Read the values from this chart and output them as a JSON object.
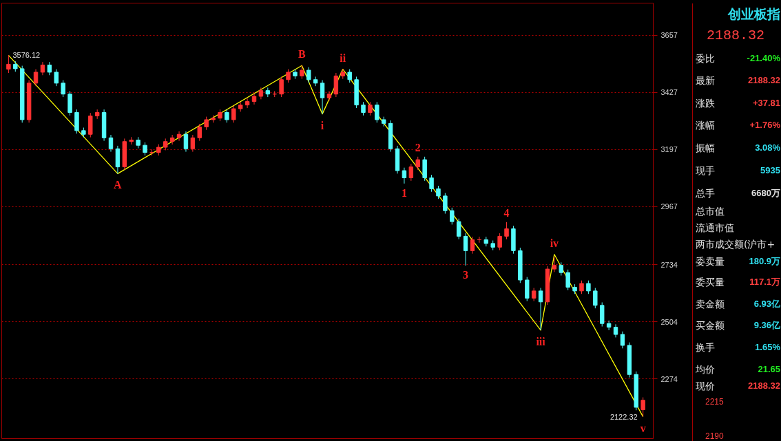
{
  "chart_data": {
    "type": "candlestick",
    "title": "创业板指",
    "subtitle": "2188.32",
    "categories": [
      null,
      null,
      null,
      null,
      null,
      null,
      null,
      null,
      null,
      null,
      null,
      null,
      null,
      null,
      null,
      null,
      null,
      null,
      null,
      null,
      null,
      null,
      null,
      null,
      null,
      null,
      null,
      null,
      null,
      null,
      null,
      null,
      null,
      null,
      null,
      null,
      null,
      null,
      null,
      null,
      null,
      null,
      null,
      null,
      null,
      null,
      null,
      null,
      null,
      null,
      null,
      null,
      null,
      null,
      null,
      null,
      null,
      null,
      null,
      null,
      null,
      null,
      null,
      null,
      null,
      null,
      null,
      null,
      null,
      null,
      null,
      null,
      null,
      null,
      null,
      null,
      null,
      null,
      null,
      null,
      null,
      null,
      null,
      null,
      null,
      null,
      null,
      null,
      null,
      null,
      null,
      null,
      null,
      null
    ],
    "ohlc": [
      [
        3520,
        3576.12,
        3505,
        3540
      ],
      [
        3540,
        3552,
        3510,
        3522
      ],
      [
        3522,
        3534,
        3305,
        3317
      ],
      [
        3317,
        3476,
        3305,
        3464
      ],
      [
        3464,
        3520,
        3452,
        3508
      ],
      [
        3508,
        3549,
        3496,
        3537
      ],
      [
        3537,
        3549,
        3496,
        3508
      ],
      [
        3508,
        3520,
        3452,
        3464
      ],
      [
        3464,
        3476,
        3408,
        3420
      ],
      [
        3420,
        3432,
        3334,
        3346
      ],
      [
        3346,
        3358,
        3261,
        3273
      ],
      [
        3273,
        3285,
        3246,
        3258
      ],
      [
        3258,
        3344,
        3246,
        3332
      ],
      [
        3332,
        3358,
        3320,
        3346
      ],
      [
        3346,
        3358,
        3232,
        3244
      ],
      [
        3244,
        3256,
        3188,
        3200
      ],
      [
        3200,
        3212,
        3100,
        3127
      ],
      [
        3127,
        3241,
        3115,
        3229
      ],
      [
        3229,
        3247,
        3217,
        3235
      ],
      [
        3235,
        3247,
        3202,
        3214
      ],
      [
        3214,
        3226,
        3173,
        3185
      ],
      [
        3185,
        3197,
        3173,
        3185
      ],
      [
        3185,
        3218,
        3173,
        3206
      ],
      [
        3206,
        3241,
        3194,
        3229
      ],
      [
        3229,
        3256,
        3217,
        3244
      ],
      [
        3244,
        3270,
        3232,
        3258
      ],
      [
        3258,
        3270,
        3188,
        3200
      ],
      [
        3200,
        3256,
        3188,
        3244
      ],
      [
        3244,
        3300,
        3232,
        3288
      ],
      [
        3288,
        3329,
        3276,
        3317
      ],
      [
        3317,
        3335,
        3305,
        3323
      ],
      [
        3323,
        3358,
        3311,
        3346
      ],
      [
        3346,
        3358,
        3305,
        3317
      ],
      [
        3317,
        3373,
        3305,
        3361
      ],
      [
        3361,
        3388,
        3349,
        3376
      ],
      [
        3376,
        3402,
        3364,
        3390
      ],
      [
        3390,
        3423,
        3378,
        3411
      ],
      [
        3411,
        3446,
        3399,
        3434
      ],
      [
        3434,
        3446,
        3408,
        3420
      ],
      [
        3420,
        3432,
        3408,
        3420
      ],
      [
        3420,
        3490,
        3408,
        3478
      ],
      [
        3478,
        3520,
        3466,
        3508
      ],
      [
        3508,
        3520,
        3481,
        3493
      ],
      [
        3493,
        3535,
        3481,
        3516
      ],
      [
        3516,
        3528,
        3466,
        3478
      ],
      [
        3478,
        3490,
        3452,
        3464
      ],
      [
        3464,
        3476,
        3340,
        3405
      ],
      [
        3405,
        3432,
        3393,
        3420
      ],
      [
        3420,
        3505,
        3408,
        3493
      ],
      [
        3493,
        3520,
        3481,
        3508
      ],
      [
        3508,
        3520,
        3466,
        3478
      ],
      [
        3478,
        3490,
        3364,
        3376
      ],
      [
        3376,
        3388,
        3334,
        3346
      ],
      [
        3346,
        3388,
        3334,
        3376
      ],
      [
        3376,
        3388,
        3305,
        3317
      ],
      [
        3317,
        3329,
        3290,
        3302
      ],
      [
        3302,
        3314,
        3188,
        3200
      ],
      [
        3200,
        3212,
        3100,
        3112
      ],
      [
        3112,
        3124,
        3060,
        3083
      ],
      [
        3083,
        3139,
        3071,
        3127
      ],
      [
        3127,
        3168,
        3115,
        3156
      ],
      [
        3156,
        3168,
        3071,
        3083
      ],
      [
        3083,
        3095,
        3027,
        3039
      ],
      [
        3039,
        3051,
        2998,
        3010
      ],
      [
        3010,
        3022,
        2939,
        2951
      ],
      [
        2951,
        2963,
        2895,
        2907
      ],
      [
        2907,
        2919,
        2836,
        2848
      ],
      [
        2848,
        2860,
        2730,
        2790
      ],
      [
        2790,
        2846,
        2778,
        2834
      ],
      [
        2834,
        2846,
        2822,
        2834
      ],
      [
        2834,
        2846,
        2807,
        2819
      ],
      [
        2819,
        2831,
        2792,
        2804
      ],
      [
        2804,
        2860,
        2792,
        2848
      ],
      [
        2848,
        2905,
        2836,
        2878
      ],
      [
        2878,
        2890,
        2778,
        2790
      ],
      [
        2790,
        2802,
        2660,
        2672
      ],
      [
        2672,
        2684,
        2587,
        2599
      ],
      [
        2599,
        2640,
        2587,
        2628
      ],
      [
        2628,
        2640,
        2470,
        2584
      ],
      [
        2584,
        2728,
        2572,
        2716
      ],
      [
        2716,
        2765,
        2704,
        2731
      ],
      [
        2731,
        2743,
        2690,
        2702
      ],
      [
        2702,
        2714,
        2631,
        2643
      ],
      [
        2643,
        2655,
        2616,
        2628
      ],
      [
        2628,
        2670,
        2616,
        2658
      ],
      [
        2658,
        2670,
        2616,
        2628
      ],
      [
        2628,
        2640,
        2558,
        2570
      ],
      [
        2570,
        2582,
        2485,
        2497
      ],
      [
        2497,
        2509,
        2470,
        2482
      ],
      [
        2482,
        2494,
        2441,
        2453
      ],
      [
        2453,
        2465,
        2397,
        2409
      ],
      [
        2409,
        2421,
        2280,
        2292
      ],
      [
        2292,
        2304,
        2148,
        2160
      ],
      [
        2150,
        2200,
        2122.32,
        2188.32
      ]
    ],
    "value_labels": [
      null,
      null,
      null,
      null,
      null,
      null,
      null,
      null,
      null,
      null,
      null,
      null,
      null,
      null,
      null,
      null,
      null,
      null,
      null,
      null,
      null,
      null,
      null,
      null,
      null,
      null,
      null,
      null,
      null,
      null,
      null,
      null,
      null,
      null,
      null,
      null,
      null,
      null,
      null,
      null,
      null,
      null,
      null,
      null,
      null,
      null,
      null,
      null,
      null,
      null,
      null,
      null,
      null,
      null,
      null,
      null,
      null,
      null,
      "1",
      null,
      "2",
      null,
      null,
      null,
      null,
      null,
      null,
      "3",
      null,
      null,
      null,
      null,
      null,
      "4",
      null,
      null,
      null,
      null,
      null,
      null,
      null,
      null,
      null,
      null,
      null,
      null,
      null,
      null,
      null,
      null,
      null,
      null,
      null,
      "v"
    ],
    "series": [
      {
        "type": "line",
        "color": "#ffff00",
        "values": [
          3576.12,
          null,
          null,
          null,
          null,
          null,
          null,
          null,
          null,
          null,
          null,
          null,
          null,
          null,
          null,
          null,
          3100,
          null,
          null,
          null,
          null,
          null,
          null,
          null,
          null,
          null,
          null,
          null,
          null,
          null,
          null,
          null,
          null,
          null,
          null,
          null,
          null,
          null,
          null,
          null,
          null,
          null,
          null,
          3535,
          null,
          null,
          3340,
          null,
          null,
          3520,
          null,
          null,
          null,
          null,
          null,
          null,
          null,
          null,
          null,
          null,
          null,
          null,
          null,
          null,
          null,
          null,
          null,
          null,
          null,
          null,
          null,
          null,
          null,
          null,
          null,
          null,
          null,
          null,
          2470,
          null,
          2775,
          null,
          null,
          null,
          null,
          null,
          null,
          null,
          null,
          null,
          null,
          null,
          null,
          2122.32
        ],
        "value_labels": [
          "3576.12",
          null,
          null,
          null,
          null,
          null,
          null,
          null,
          null,
          null,
          null,
          null,
          null,
          null,
          null,
          null,
          "A",
          null,
          null,
          null,
          null,
          null,
          null,
          null,
          null,
          null,
          null,
          null,
          null,
          null,
          null,
          null,
          null,
          null,
          null,
          null,
          null,
          null,
          null,
          null,
          null,
          null,
          null,
          "B",
          null,
          null,
          "i",
          null,
          null,
          "ii",
          null,
          null,
          null,
          null,
          null,
          null,
          null,
          null,
          null,
          null,
          null,
          null,
          null,
          null,
          null,
          null,
          null,
          null,
          null,
          null,
          null,
          null,
          null,
          null,
          null,
          null,
          null,
          null,
          "iii",
          null,
          "iv",
          null,
          null,
          null,
          null,
          null,
          null,
          null,
          null,
          null,
          null,
          null,
          null,
          "2122.32"
        ]
      }
    ],
    "ylim": [
      2034,
      3786
    ],
    "yticks": [
      2274,
      2504,
      2734,
      2967,
      3197,
      3427,
      3657
    ],
    "grid": "y",
    "tick_labels": "y",
    "annotations": [
      "委比",
      "-21.40%",
      "最新",
      "2188.32",
      "涨跌",
      "+37.81",
      "涨幅",
      "+1.76%",
      "振幅",
      "3.08%",
      "现手",
      "5935",
      "总手",
      "6680万",
      "总市值",
      "流通市值",
      "两市成交额(沪市+",
      "委卖量",
      "180.9万",
      "委买量",
      "117.1万",
      "卖金额",
      "6.93亿",
      "买金额",
      "9.36亿",
      "换手",
      "1.65%",
      "均价",
      "21.65",
      "现价",
      "2188.32",
      "2215",
      "2190"
    ]
  }
}
